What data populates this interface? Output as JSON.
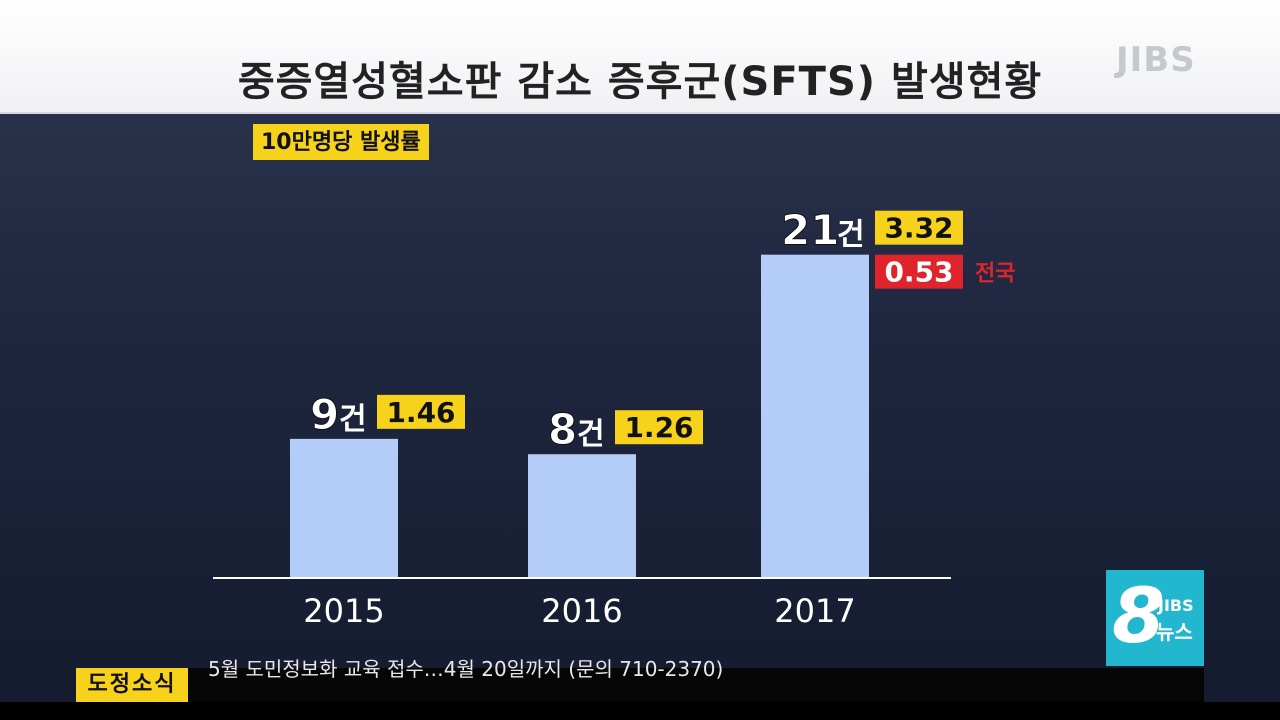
{
  "header": {
    "title": "중증열성혈소판 감소 증후군(SFTS) 발생현황",
    "logo": "JIBS"
  },
  "unit_label": "10만명당 발생률",
  "chart_data": {
    "type": "bar",
    "title": "중증열성혈소판 감소 증후군(SFTS) 발생현황",
    "categories": [
      "2015",
      "2016",
      "2017"
    ],
    "series": [
      {
        "name": "",
        "values": [
          9,
          8,
          21
        ]
      }
    ],
    "count_unit": "건",
    "rates": [
      "1.46",
      "1.26",
      "3.32"
    ],
    "national_rate": "0.53",
    "national_label": "전국",
    "ylim": [
      0,
      21.5
    ],
    "grid": false,
    "bar_color": "#b4cdf8",
    "rate_color": "#f7d21b",
    "national_color": "#e0242b"
  },
  "news_logo": {
    "number": "8",
    "brand": "JIBS",
    "label": "뉴스"
  },
  "ticker": {
    "label": "도정소식",
    "line1": "5월 도민정보화 교육 접수…4월 20일까지 (문의 710-2370)",
    "line2": ""
  }
}
